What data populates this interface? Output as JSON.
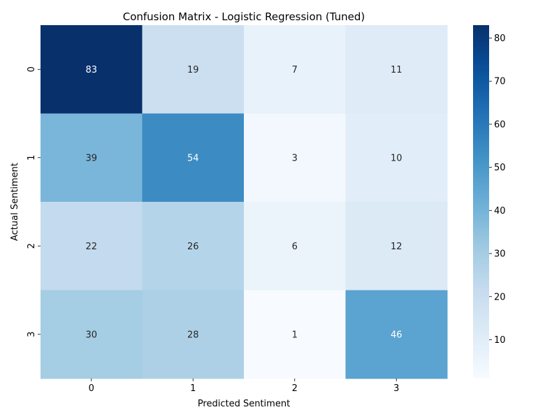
{
  "chart_data": {
    "type": "heatmap",
    "title": "Confusion Matrix - Logistic Regression (Tuned)",
    "xlabel": "Predicted Sentiment",
    "ylabel": "Actual Sentiment",
    "x_categories": [
      "0",
      "1",
      "2",
      "3"
    ],
    "y_categories": [
      "0",
      "1",
      "2",
      "3"
    ],
    "values": [
      [
        83,
        19,
        7,
        11
      ],
      [
        39,
        54,
        3,
        10
      ],
      [
        22,
        26,
        6,
        12
      ],
      [
        30,
        28,
        1,
        46
      ]
    ],
    "colorscale": "Blues",
    "color_range": [
      1,
      83
    ],
    "colorbar_ticks": [
      10,
      20,
      30,
      40,
      50,
      60,
      70,
      80
    ]
  }
}
